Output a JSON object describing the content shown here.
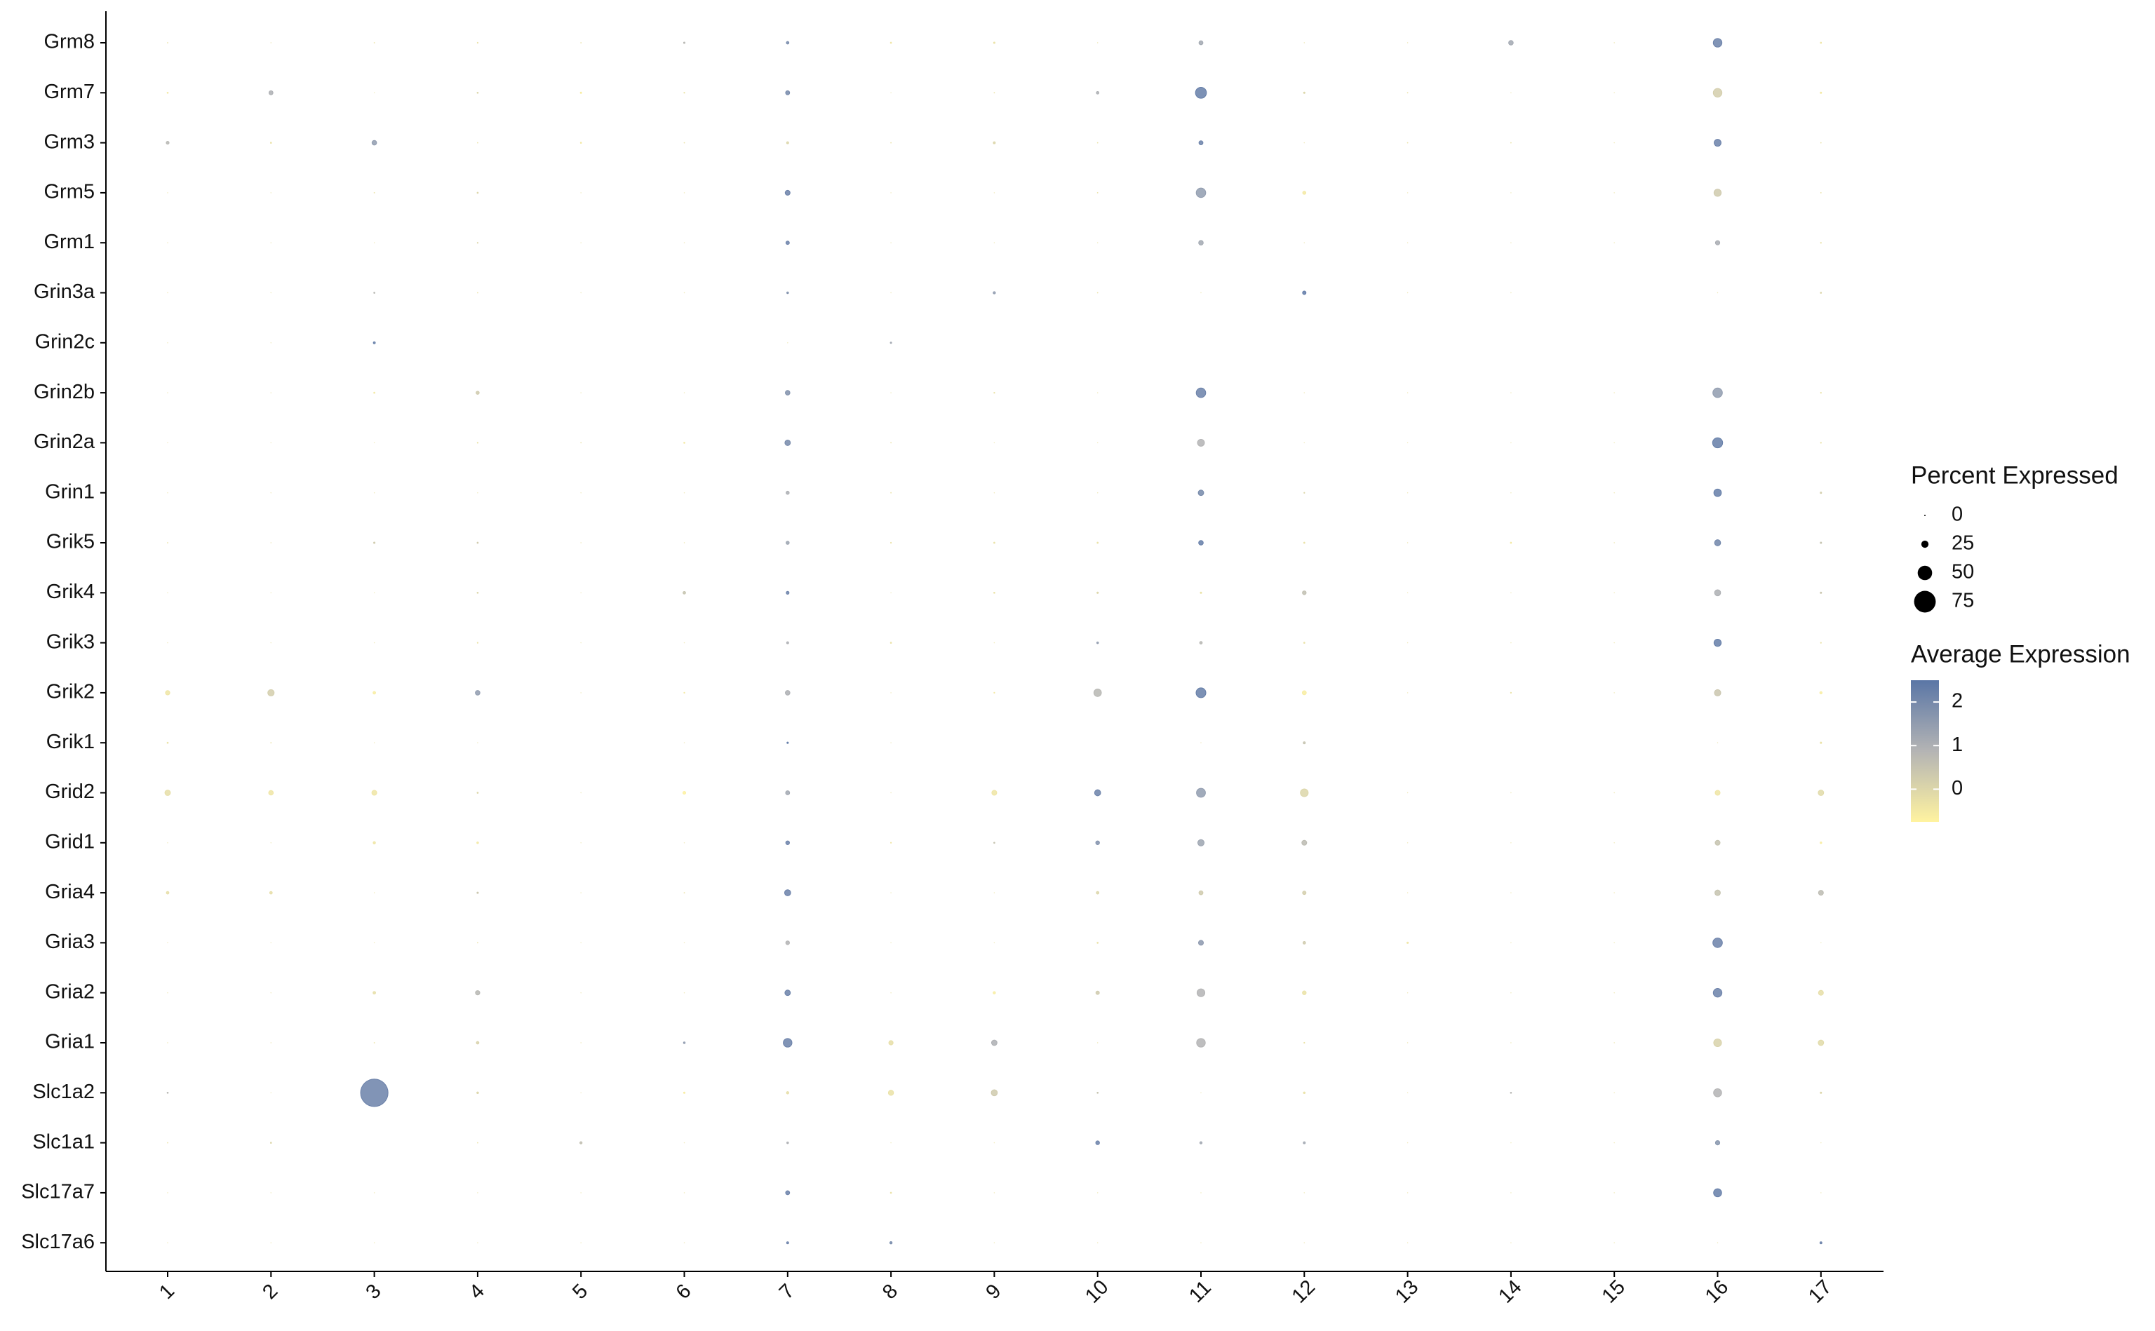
{
  "chart_data": {
    "type": "dotplot",
    "categories": [
      "1",
      "2",
      "3",
      "4",
      "5",
      "6",
      "7",
      "8",
      "9",
      "10",
      "11",
      "12",
      "13",
      "14",
      "15",
      "16",
      "17"
    ],
    "genes": [
      "Grm8",
      "Grm7",
      "Grm3",
      "Grm5",
      "Grm1",
      "Grin3a",
      "Grin2c",
      "Grin2b",
      "Grin2a",
      "Grin1",
      "Grik5",
      "Grik4",
      "Grik3",
      "Grik2",
      "Grik1",
      "Grid2",
      "Grid1",
      "Gria4",
      "Gria3",
      "Gria2",
      "Gria1",
      "Slc1a2",
      "Slc1a1",
      "Slc17a7",
      "Slc17a6"
    ],
    "pct": [
      [
        2,
        1,
        2,
        3,
        2,
        5,
        9,
        4,
        5,
        1,
        14,
        1,
        1,
        16,
        1,
        30,
        4
      ],
      [
        4,
        14,
        1,
        4,
        5,
        3,
        14,
        1,
        2,
        9,
        38,
        5,
        2,
        1,
        1,
        30,
        5
      ],
      [
        10,
        4,
        16,
        2,
        4,
        2,
        7,
        2,
        7,
        2,
        14,
        1,
        2,
        2,
        1,
        24,
        2
      ],
      [
        1,
        1,
        2,
        4,
        1,
        1,
        17,
        1,
        1,
        2,
        33,
        11,
        1,
        1,
        1,
        25,
        2
      ],
      [
        1,
        1,
        1,
        3,
        1,
        1,
        12,
        1,
        1,
        1,
        16,
        1,
        1,
        1,
        1,
        15,
        3
      ],
      [
        1,
        1,
        4,
        2,
        1,
        1,
        6,
        1,
        8,
        2,
        1,
        12,
        1,
        1,
        0,
        1,
        4
      ],
      [
        1,
        1,
        7,
        0,
        0,
        0,
        1,
        5,
        0,
        0,
        0,
        0,
        0,
        0,
        0,
        0,
        0
      ],
      [
        1,
        1,
        4,
        11,
        1,
        1,
        16,
        1,
        3,
        1,
        33,
        1,
        1,
        1,
        1,
        33,
        3
      ],
      [
        1,
        1,
        1,
        3,
        2,
        4,
        19,
        2,
        1,
        1,
        24,
        1,
        1,
        1,
        1,
        35,
        3
      ],
      [
        1,
        1,
        1,
        1,
        1,
        1,
        11,
        2,
        1,
        1,
        19,
        3,
        1,
        1,
        1,
        26,
        5
      ],
      [
        2,
        1,
        5,
        4,
        1,
        1,
        11,
        3,
        4,
        4,
        16,
        4,
        1,
        4,
        1,
        21,
        5
      ],
      [
        1,
        1,
        1,
        4,
        1,
        9,
        10,
        1,
        4,
        5,
        5,
        13,
        1,
        1,
        1,
        21,
        5
      ],
      [
        1,
        1,
        1,
        3,
        1,
        1,
        7,
        4,
        1,
        6,
        9,
        4,
        1,
        1,
        1,
        25,
        3
      ],
      [
        15,
        22,
        9,
        16,
        1,
        3,
        16,
        1,
        3,
        26,
        34,
        14,
        1,
        3,
        1,
        22,
        8
      ],
      [
        4,
        2,
        1,
        1,
        0,
        1,
        5,
        1,
        0,
        0,
        1,
        7,
        0,
        0,
        0,
        1,
        5
      ],
      [
        19,
        16,
        17,
        4,
        1,
        10,
        14,
        1,
        17,
        21,
        31,
        27,
        1,
        1,
        1,
        17,
        19
      ],
      [
        1,
        1,
        8,
        6,
        1,
        1,
        13,
        3,
        4,
        13,
        22,
        17,
        1,
        1,
        1,
        17,
        6
      ],
      [
        9,
        9,
        1,
        5,
        1,
        2,
        21,
        1,
        1,
        9,
        14,
        12,
        1,
        1,
        1,
        19,
        17
      ],
      [
        1,
        1,
        1,
        2,
        1,
        1,
        13,
        1,
        1,
        4,
        17,
        9,
        5,
        1,
        1,
        33,
        1
      ],
      [
        1,
        1,
        9,
        15,
        1,
        1,
        19,
        1,
        8,
        12,
        27,
        13,
        1,
        1,
        1,
        30,
        17
      ],
      [
        1,
        1,
        2,
        9,
        1,
        6,
        30,
        15,
        19,
        1,
        30,
        3,
        1,
        1,
        1,
        27,
        19
      ],
      [
        4,
        1,
        95,
        6,
        1,
        5,
        8,
        18,
        21,
        4,
        1,
        6,
        1,
        4,
        1,
        28,
        5
      ],
      [
        2,
        4,
        0,
        2,
        8,
        1,
        6,
        1,
        1,
        13,
        8,
        7,
        1,
        1,
        1,
        15,
        1
      ],
      [
        1,
        1,
        1,
        1,
        1,
        1,
        14,
        4,
        1,
        1,
        1,
        1,
        1,
        1,
        1,
        28,
        1
      ],
      [
        1,
        1,
        1,
        1,
        1,
        1,
        7,
        8,
        1,
        1,
        1,
        1,
        1,
        1,
        1,
        1,
        7
      ]
    ],
    "avg": [
      [
        -0.3,
        -0.3,
        -0.3,
        -0.3,
        -0.3,
        0.8,
        2,
        -0.4,
        -0.3,
        -0.3,
        1.2,
        -0.3,
        -0.3,
        1.2,
        -0.3,
        2.2,
        -0.4
      ],
      [
        -0.5,
        1,
        -0.3,
        0,
        -0.6,
        -0.3,
        2,
        -0.3,
        -0.3,
        1,
        2.3,
        0,
        -0.3,
        -0.3,
        -0.3,
        0.2,
        -0.5
      ],
      [
        0.8,
        -0.3,
        1.5,
        -0.3,
        -0.5,
        -0.3,
        0,
        -0.3,
        0,
        -0.3,
        2.2,
        -0.3,
        -0.3,
        -0.3,
        -0.3,
        2.2,
        -0.3
      ],
      [
        -0.3,
        -0.3,
        -0.3,
        0,
        -0.3,
        -0.3,
        2.2,
        -0.3,
        -0.3,
        -0.3,
        1.5,
        -0.5,
        -0.3,
        -0.3,
        -0.3,
        0.3,
        -0.3
      ],
      [
        -0.3,
        -0.3,
        -0.3,
        0,
        -0.3,
        -0.3,
        2.2,
        -0.3,
        -0.3,
        -0.3,
        1.2,
        -0.3,
        -0.3,
        -0.3,
        -0.3,
        1.1,
        -0.3
      ],
      [
        -0.3,
        -0.3,
        0.8,
        -0.3,
        -0.3,
        -0.3,
        1.8,
        -0.3,
        1.5,
        -0.3,
        -0.3,
        2.4,
        -0.3,
        -0.3,
        0,
        -0.3,
        0
      ],
      [
        -0.3,
        -0.3,
        2.3,
        0,
        0,
        0,
        -0.3,
        1.2,
        0,
        0,
        0,
        0,
        0,
        0,
        0,
        0,
        0
      ],
      [
        -0.3,
        -0.3,
        -0.5,
        0.3,
        -0.3,
        -0.3,
        1.8,
        -0.3,
        -0.3,
        -0.3,
        2.2,
        -0.3,
        -0.3,
        -0.3,
        -0.3,
        1.5,
        -0.3
      ],
      [
        -0.3,
        -0.3,
        -0.3,
        -0.3,
        -0.3,
        -0.5,
        2,
        -0.3,
        -0.3,
        -0.3,
        0.9,
        -0.3,
        -0.3,
        -0.3,
        -0.3,
        2.3,
        -0.3
      ],
      [
        -0.3,
        -0.3,
        -0.3,
        -0.3,
        -0.3,
        -0.3,
        1,
        -0.3,
        -0.3,
        -0.3,
        2,
        0,
        -0.3,
        -0.3,
        -0.3,
        2.3,
        0.2
      ],
      [
        -0.3,
        -0.3,
        0.3,
        0.3,
        -0.3,
        -0.3,
        1.3,
        -0.3,
        -0.3,
        -0.3,
        2.3,
        -0.3,
        -0.3,
        -0.5,
        -0.3,
        2.1,
        0.5
      ],
      [
        -0.3,
        -0.3,
        -0.3,
        0,
        -0.3,
        0.5,
        2.2,
        -0.3,
        -0.3,
        0,
        -0.3,
        0.6,
        -0.3,
        -0.3,
        -0.3,
        1,
        0.4
      ],
      [
        -0.3,
        -0.3,
        -0.3,
        -0.3,
        -0.3,
        -0.3,
        1,
        -0.3,
        -0.3,
        1.5,
        0.8,
        -0.3,
        -0.3,
        -0.3,
        -0.3,
        2.3,
        -0.3
      ],
      [
        -0.4,
        0.2,
        -0.6,
        1.5,
        -0.3,
        -0.5,
        1,
        -0.3,
        -0.5,
        0.8,
        2.3,
        -0.6,
        -0.3,
        -0.3,
        -0.3,
        0.4,
        -0.6
      ],
      [
        -0.3,
        -0.3,
        -0.3,
        -0.3,
        0,
        -0.3,
        2.4,
        -0.3,
        0,
        0,
        -0.3,
        0.5,
        0,
        0,
        0,
        -0.3,
        -0.3
      ],
      [
        -0.2,
        -0.4,
        -0.4,
        0,
        -0.3,
        -0.7,
        1.2,
        -0.3,
        -0.4,
        2.2,
        1.5,
        0,
        -0.3,
        -0.3,
        -0.3,
        -0.4,
        -0.1
      ],
      [
        -0.3,
        -0.3,
        -0.4,
        -0.5,
        -0.3,
        -0.3,
        2.2,
        -0.4,
        0.5,
        1.8,
        1.3,
        0.7,
        -0.3,
        -0.3,
        -0.3,
        0.5,
        -0.6
      ],
      [
        -0.2,
        -0.2,
        -0.3,
        0.4,
        -0.3,
        -0.3,
        2.2,
        -0.3,
        -0.3,
        0,
        0.3,
        0.2,
        -0.3,
        -0.3,
        -0.3,
        0.5,
        0.7
      ],
      [
        -0.3,
        -0.3,
        -0.3,
        -0.3,
        -0.3,
        -0.3,
        0.9,
        -0.3,
        -0.3,
        -0.3,
        1.6,
        0.3,
        -0.4,
        -0.3,
        -0.3,
        2.2,
        -0.3
      ],
      [
        -0.3,
        -0.3,
        -0.2,
        0.8,
        -0.3,
        -0.3,
        2.2,
        -0.3,
        -0.6,
        0.3,
        0.9,
        -0.3,
        -0.3,
        -0.3,
        -0.3,
        2.2,
        -0.2
      ],
      [
        -0.3,
        -0.3,
        -0.3,
        0.1,
        -0.3,
        1.5,
        2.2,
        -0.2,
        1,
        -0.3,
        0.9,
        -0.3,
        -0.3,
        -0.3,
        -0.3,
        0.1,
        -0.1
      ],
      [
        0.8,
        -0.3,
        2.2,
        0,
        -0.3,
        -0.6,
        -0.2,
        -0.3,
        0.3,
        0.5,
        -0.3,
        -0.3,
        -0.3,
        0.8,
        -0.3,
        0.9,
        0
      ],
      [
        -0.3,
        0,
        -0.3,
        -0.3,
        0.6,
        -0.3,
        1,
        -0.3,
        -0.3,
        2.2,
        1.2,
        1.2,
        -0.3,
        -0.3,
        -0.3,
        1.7,
        -0.3
      ],
      [
        -0.3,
        -0.3,
        -0.3,
        -0.3,
        -0.3,
        -0.3,
        2.2,
        -0.3,
        -0.3,
        -0.3,
        -0.3,
        -0.3,
        -0.3,
        -0.3,
        -0.3,
        2.3,
        -0.3
      ],
      [
        -0.3,
        -0.3,
        -0.3,
        -0.3,
        -0.3,
        -0.3,
        2.2,
        2,
        -0.3,
        -0.3,
        -0.3,
        -0.3,
        -0.3,
        -0.3,
        -0.3,
        -0.3,
        2.2
      ]
    ],
    "size_legend": {
      "title": "Percent Expressed",
      "values": [
        0,
        25,
        50,
        75
      ]
    },
    "color_legend": {
      "title": "Average Expression",
      "ticks": [
        0,
        1,
        2
      ],
      "lim": [
        -0.75,
        2.5
      ]
    },
    "colors": [
      "#fff3a0",
      "#b4b4b4",
      "#5a76a6"
    ]
  }
}
